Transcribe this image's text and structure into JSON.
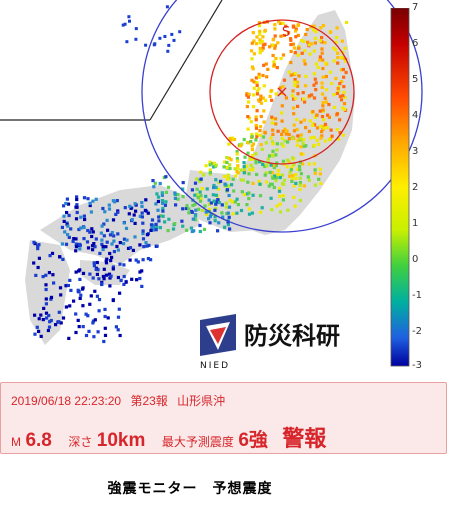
{
  "map": {
    "epicenter_marker": "×",
    "s_wave_label": "S",
    "colors": {
      "land": "#d8d8d8",
      "circle": "#3a3fd0",
      "s_circle": "#d62020",
      "boundary": "#222222"
    }
  },
  "colorbar": {
    "labels": [
      "7",
      "6",
      "5",
      "4",
      "3",
      "2",
      "1",
      "0",
      "-1",
      "-2",
      "-3"
    ]
  },
  "logo": {
    "name": "防災科研",
    "sub": "NIED"
  },
  "alert": {
    "datetime": "2019/06/18 22:23:20",
    "report_no": "第23報",
    "region": "山形県沖",
    "magnitude_prefix": "M",
    "magnitude": "6.8",
    "depth_label": "深さ",
    "depth": "10km",
    "max_intensity_label": "最大予測震度",
    "max_intensity": "6強",
    "warning": "警報"
  },
  "caption": "強震モニター　予想震度"
}
